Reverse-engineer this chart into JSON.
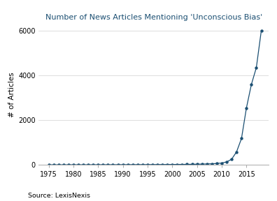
{
  "title": "Number of News Articles Mentioning 'Unconscious Bias'",
  "ylabel": "# of Articles",
  "source": "Source: LexisNexis",
  "line_color": "#1b4f72",
  "marker_color": "#1b4f72",
  "background_color": "#ffffff",
  "grid_color": "#d0d0d0",
  "ylim": [
    0,
    6300
  ],
  "yticks": [
    0,
    2000,
    4000,
    6000
  ],
  "xticks": [
    1975,
    1980,
    1985,
    1990,
    1995,
    2000,
    2005,
    2010,
    2015
  ],
  "xlim": [
    1973,
    2019.5
  ],
  "years": [
    1975,
    1976,
    1977,
    1978,
    1979,
    1980,
    1981,
    1982,
    1983,
    1984,
    1985,
    1986,
    1987,
    1988,
    1989,
    1990,
    1991,
    1992,
    1993,
    1994,
    1995,
    1996,
    1997,
    1998,
    1999,
    2000,
    2001,
    2002,
    2003,
    2004,
    2005,
    2006,
    2007,
    2008,
    2009,
    2010,
    2011,
    2012,
    2013,
    2014,
    2015,
    2016,
    2017,
    2018
  ],
  "values": [
    3,
    2,
    2,
    2,
    3,
    4,
    3,
    3,
    4,
    4,
    5,
    5,
    6,
    6,
    7,
    7,
    8,
    8,
    9,
    9,
    10,
    11,
    12,
    13,
    14,
    16,
    17,
    19,
    21,
    24,
    28,
    33,
    39,
    48,
    60,
    80,
    130,
    250,
    580,
    1180,
    2550,
    3600,
    4350,
    6000
  ]
}
